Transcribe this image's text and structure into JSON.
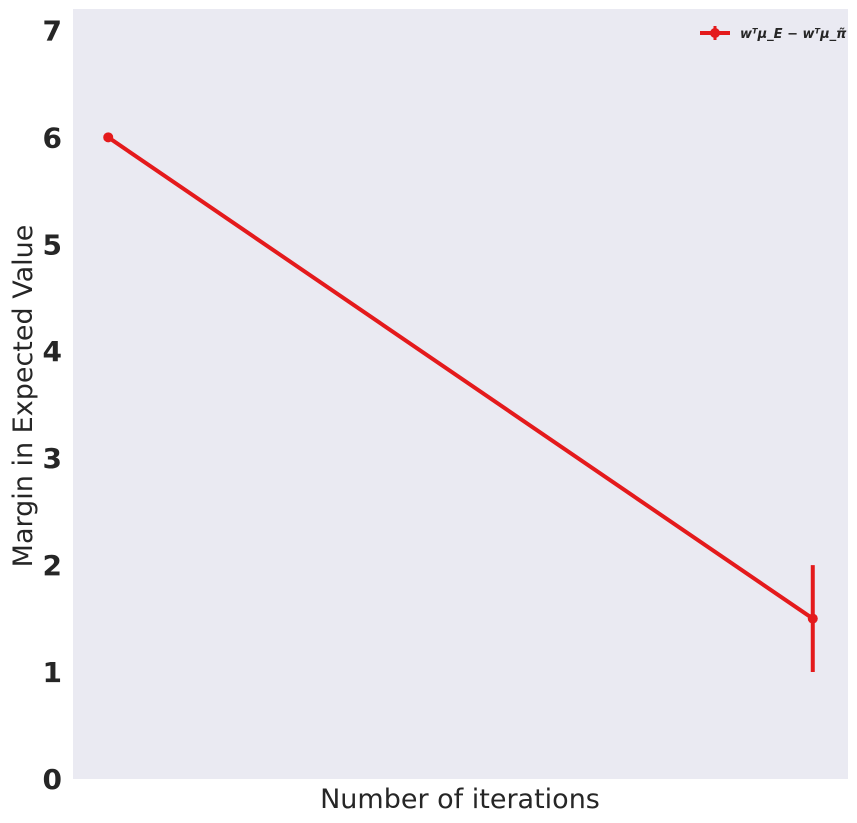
{
  "chart_data": {
    "type": "line",
    "xlabel": "Number of iterations",
    "ylabel": "Margin in Expected Value",
    "ylim": [
      0,
      7.2
    ],
    "yticks": [
      "0",
      "1",
      "2",
      "3",
      "4",
      "5",
      "6",
      "7"
    ],
    "x": [
      0,
      1
    ],
    "xlim": [
      -0.05,
      1.05
    ],
    "grid": false,
    "legend_position": "top-right",
    "background_color": "#eaeaf2",
    "series": [
      {
        "name": "wᵀμ_E − wᵀμ_π̃",
        "color": "#e41a1c",
        "values": [
          6.0,
          1.5
        ],
        "error": [
          0.0,
          0.5
        ]
      }
    ]
  }
}
